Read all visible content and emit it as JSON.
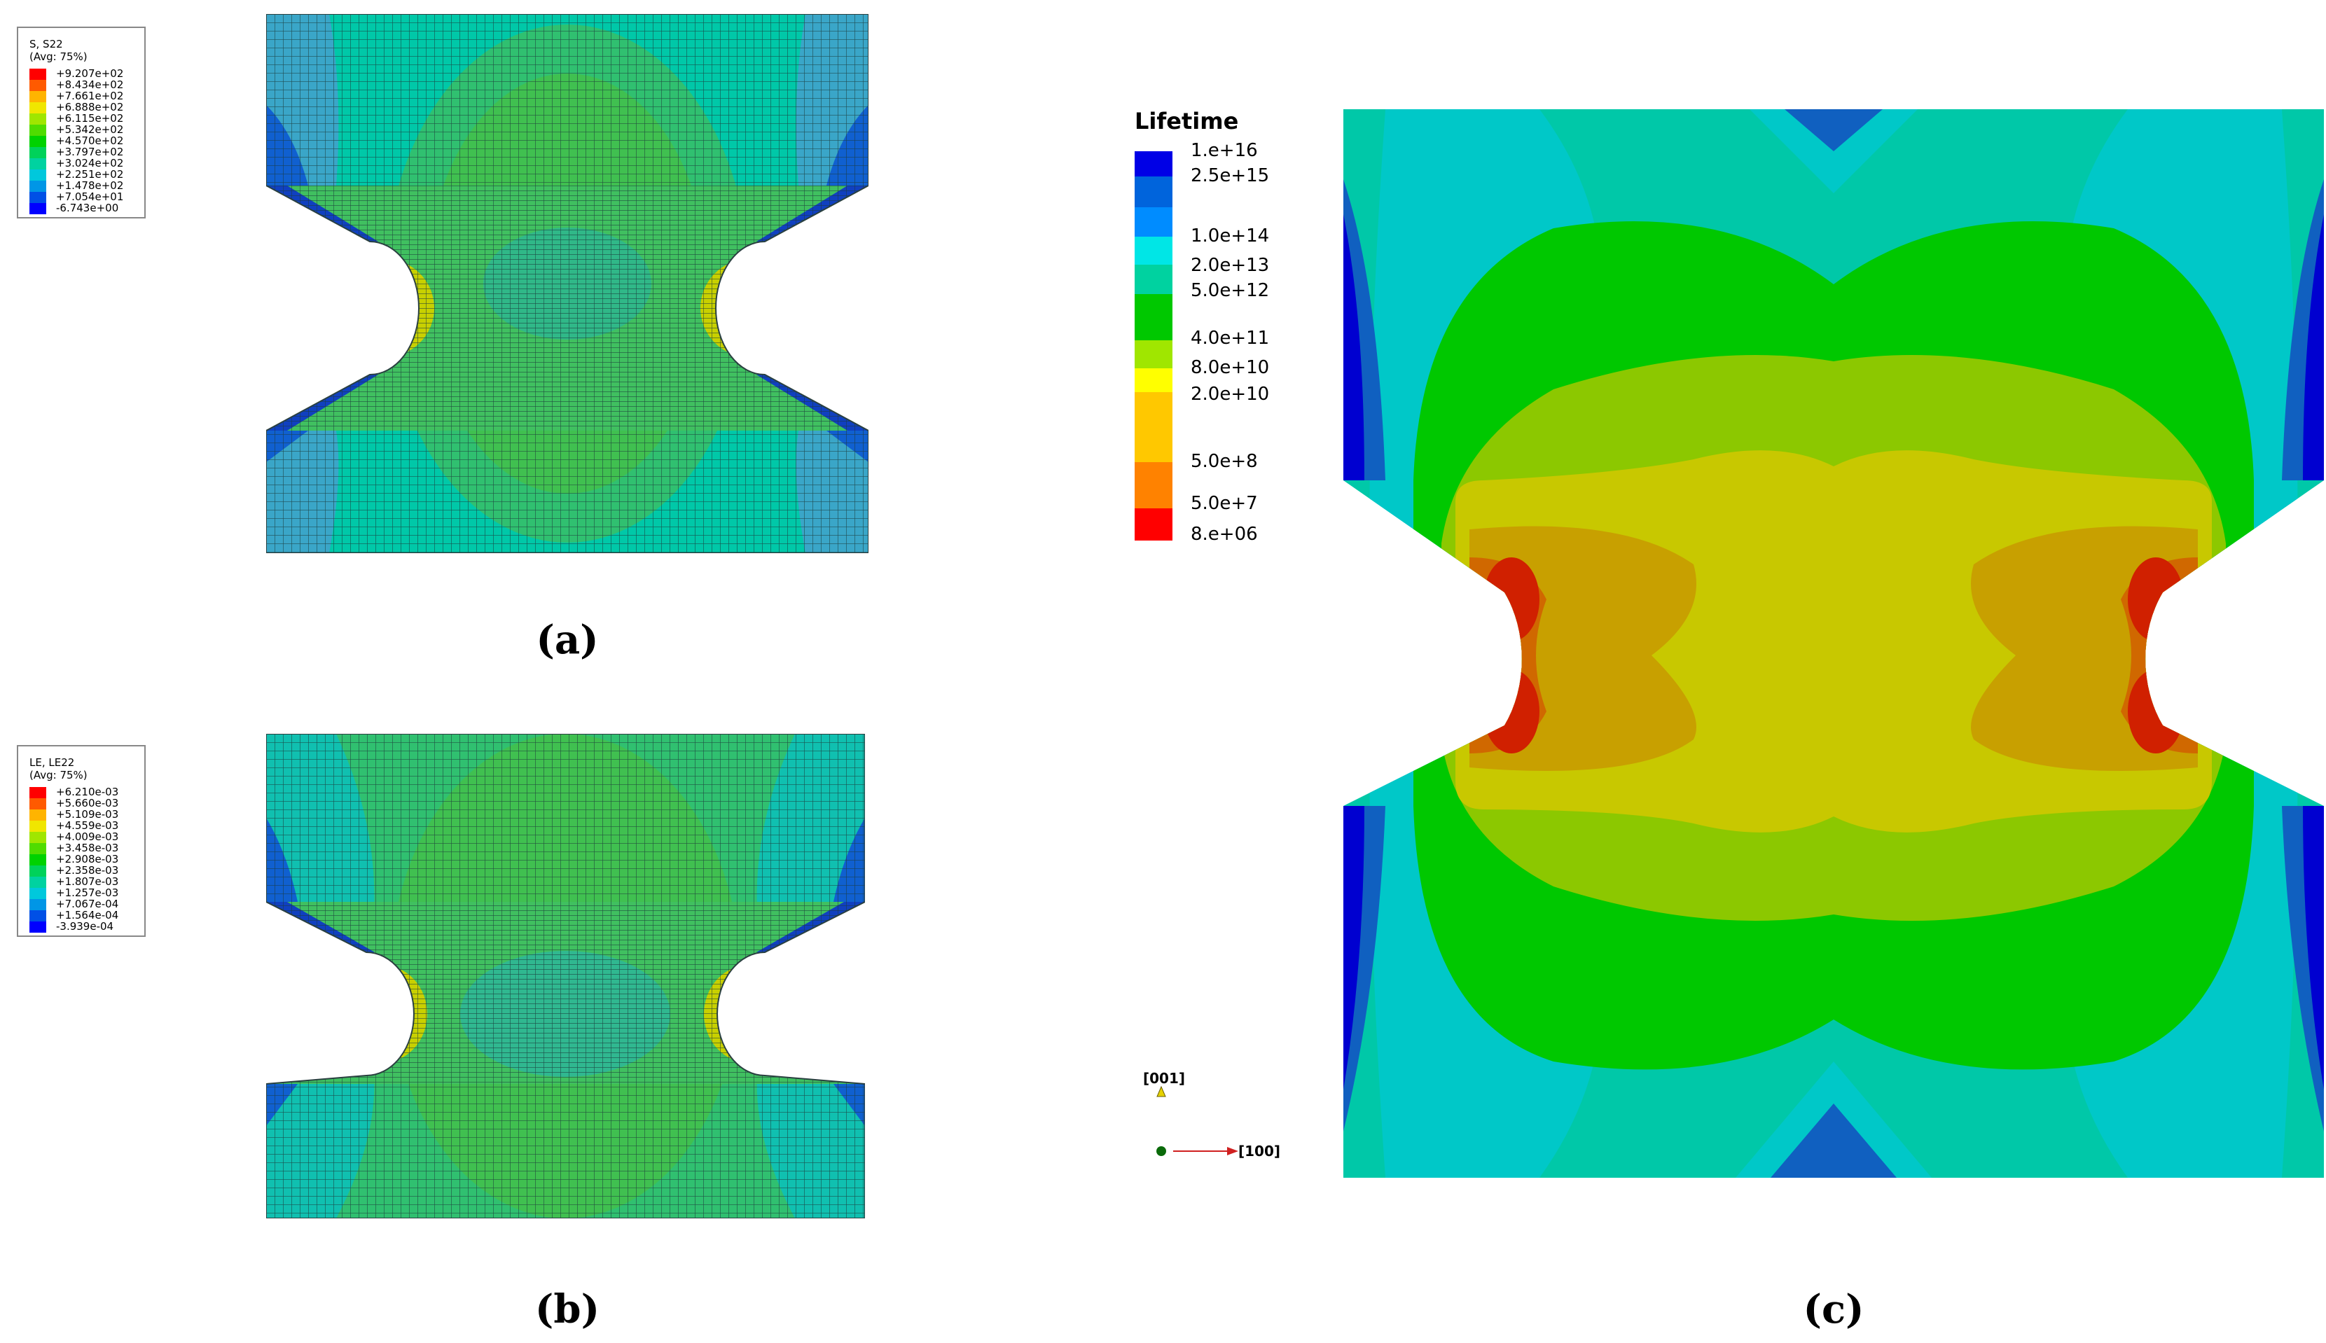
{
  "panel_a": {
    "caption": "(a)",
    "legend": {
      "title": "S, S22",
      "subtitle": "(Avg: 75%)",
      "entries": [
        {
          "value": "+9.207e+02",
          "color": "#ff0000"
        },
        {
          "value": "+8.434e+02",
          "color": "#ff5a00"
        },
        {
          "value": "+7.661e+02",
          "color": "#ffb400"
        },
        {
          "value": "+6.888e+02",
          "color": "#f0e600"
        },
        {
          "value": "+6.115e+02",
          "color": "#a0e600"
        },
        {
          "value": "+5.342e+02",
          "color": "#50dc00"
        },
        {
          "value": "+4.570e+02",
          "color": "#00d200"
        },
        {
          "value": "+3.797e+02",
          "color": "#00d25a"
        },
        {
          "value": "+3.024e+02",
          "color": "#00d2a0"
        },
        {
          "value": "+2.251e+02",
          "color": "#00c8dc"
        },
        {
          "value": "+1.478e+02",
          "color": "#0096e6"
        },
        {
          "value": "+7.054e+01",
          "color": "#0050e6"
        },
        {
          "value": "-6.743e+00",
          "color": "#0000ff"
        }
      ]
    }
  },
  "panel_b": {
    "caption": "(b)",
    "legend": {
      "title": "LE, LE22",
      "subtitle": "(Avg: 75%)",
      "entries": [
        {
          "value": "+6.210e-03",
          "color": "#ff0000"
        },
        {
          "value": "+5.660e-03",
          "color": "#ff5a00"
        },
        {
          "value": "+5.109e-03",
          "color": "#ffb400"
        },
        {
          "value": "+4.559e-03",
          "color": "#f0e600"
        },
        {
          "value": "+4.009e-03",
          "color": "#a0e600"
        },
        {
          "value": "+3.458e-03",
          "color": "#50dc00"
        },
        {
          "value": "+2.908e-03",
          "color": "#00d200"
        },
        {
          "value": "+2.358e-03",
          "color": "#00d25a"
        },
        {
          "value": "+1.807e-03",
          "color": "#00d2a0"
        },
        {
          "value": "+1.257e-03",
          "color": "#00c8dc"
        },
        {
          "value": "+7.067e-04",
          "color": "#0096e6"
        },
        {
          "value": "+1.564e-04",
          "color": "#0050e6"
        },
        {
          "value": "-3.939e-04",
          "color": "#0000ff"
        }
      ]
    }
  },
  "panel_c": {
    "caption": "(c)",
    "legend": {
      "title": "Lifetime",
      "entries": [
        {
          "value": "1.e+16",
          "color": "#0000e6"
        },
        {
          "value": "2.5e+15",
          "color": "#0064dc"
        },
        {
          "value": "1.0e+14",
          "color": "#008cff"
        },
        {
          "value": "2.0e+13",
          "color": "#00e6e6"
        },
        {
          "value": "5.0e+12",
          "color": "#00d2a0"
        },
        {
          "value": "4.0e+11",
          "color": "#00c800"
        },
        {
          "value": "8.0e+10",
          "color": "#a0e600"
        },
        {
          "value": "2.0e+10",
          "color": "#ffff00"
        },
        {
          "value": "5.0e+8",
          "color": "#ffc800"
        },
        {
          "value": "5.0e+7",
          "color": "#ff8200"
        },
        {
          "value": "8.e+06",
          "color": "#ff0000"
        }
      ]
    },
    "triad": {
      "axis_vertical": "[001]",
      "axis_horizontal": "[100]"
    }
  }
}
